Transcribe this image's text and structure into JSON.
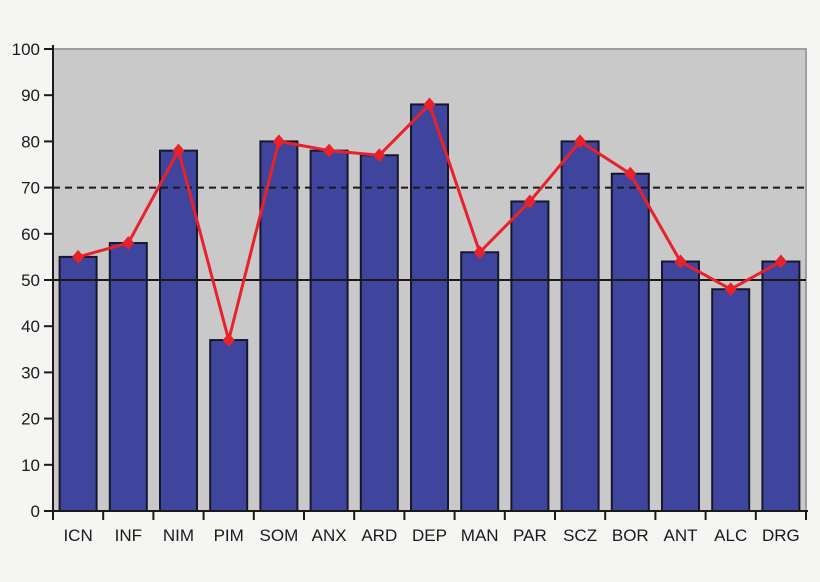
{
  "chart_data": {
    "type": "bar",
    "title": "",
    "xlabel": "",
    "ylabel": "",
    "categories": [
      "ICN",
      "INF",
      "NIM",
      "PIM",
      "SOM",
      "ANX",
      "ARD",
      "DEP",
      "MAN",
      "PAR",
      "SCZ",
      "BOR",
      "ANT",
      "ALC",
      "DRG"
    ],
    "series": [
      {
        "name": "scale-scores-bars",
        "type": "bar",
        "values": [
          55,
          58,
          78,
          37,
          80,
          78,
          77,
          88,
          56,
          67,
          80,
          73,
          54,
          48,
          54
        ]
      },
      {
        "name": "scale-scores-line",
        "type": "line",
        "values": [
          55,
          58,
          78,
          37,
          80,
          78,
          77,
          88,
          56,
          67,
          80,
          73,
          54,
          48,
          54
        ]
      }
    ],
    "ylim": [
      0,
      100
    ],
    "ytick_step": 10,
    "yticks": [
      "0",
      "10",
      "20",
      "30",
      "40",
      "50",
      "60",
      "70",
      "80",
      "90",
      "100"
    ],
    "reference_lines": [
      {
        "value": 50,
        "style": "solid"
      },
      {
        "value": 70,
        "style": "dashed"
      }
    ],
    "legend": "none",
    "grid": "off",
    "marker": "diamond",
    "colors": {
      "outer_bg": "#f5f5f4",
      "plot_bg": "#c9c9c9",
      "plot_border": "#9e9e9e",
      "bar_fill": "#3f459c",
      "bar_border": "#16172c",
      "line": "#e8212b",
      "marker": "#e8212b",
      "axis": "#1a1a1a",
      "ref_line": "#1a1a1a",
      "text": "#1a1a1a"
    }
  }
}
